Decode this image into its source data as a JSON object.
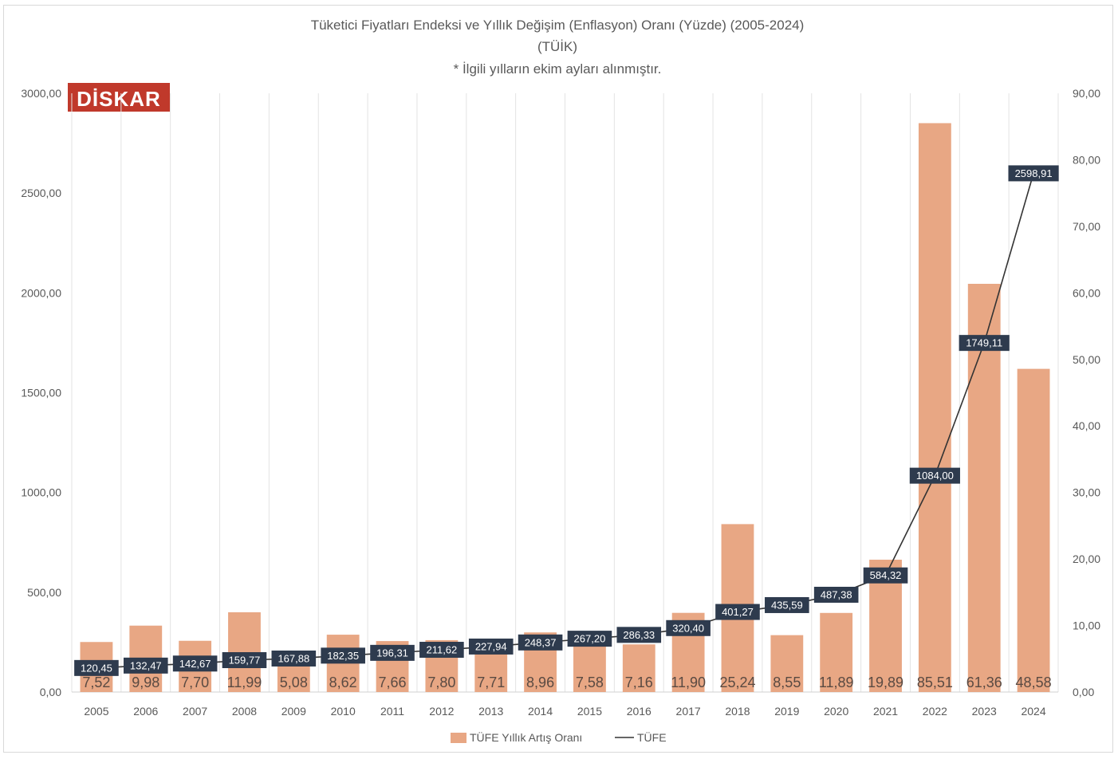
{
  "chart_data": {
    "type": "bar",
    "title": "Tüketici Fiyatları Endeksi ve Yıllık Değişim (Enflasyon) Oranı (Yüzde) (2005-2024)",
    "subtitle": "(TÜİK)",
    "note": "* İlgili yılların ekim ayları alınmıştır.",
    "categories": [
      "2005",
      "2006",
      "2007",
      "2008",
      "2009",
      "2010",
      "2011",
      "2012",
      "2013",
      "2014",
      "2015",
      "2016",
      "2017",
      "2018",
      "2019",
      "2020",
      "2021",
      "2022",
      "2023",
      "2024"
    ],
    "series": [
      {
        "name": "TÜFE Yıllık Artış Oranı",
        "type": "bar",
        "axis": "right",
        "color": "#e8a784",
        "values": [
          7.52,
          9.98,
          7.7,
          11.99,
          5.08,
          8.62,
          7.66,
          7.8,
          7.71,
          8.96,
          7.58,
          7.16,
          11.9,
          25.24,
          8.55,
          11.89,
          19.89,
          85.51,
          61.36,
          48.58
        ],
        "labels": [
          "7,52",
          "9,98",
          "7,70",
          "11,99",
          "5,08",
          "8,62",
          "7,66",
          "7,80",
          "7,71",
          "8,96",
          "7,58",
          "7,16",
          "11,90",
          "25,24",
          "8,55",
          "11,89",
          "19,89",
          "85,51",
          "61,36",
          "48,58"
        ]
      },
      {
        "name": "TÜFE",
        "type": "line",
        "axis": "left",
        "color": "#333333",
        "values": [
          120.45,
          132.47,
          142.67,
          159.77,
          167.88,
          182.35,
          196.31,
          211.62,
          227.94,
          248.37,
          267.2,
          286.33,
          320.4,
          401.27,
          435.59,
          487.38,
          584.32,
          1084.0,
          1749.11,
          2598.91
        ],
        "labels": [
          "120,45",
          "132,47",
          "142,67",
          "159,77",
          "167,88",
          "182,35",
          "196,31",
          "211,62",
          "227,94",
          "248,37",
          "267,20",
          "286,33",
          "320,40",
          "401,27",
          "435,59",
          "487,38",
          "584,32",
          "1084,00",
          "1749,11",
          "2598,91"
        ]
      }
    ],
    "y_left": {
      "ylim": [
        0,
        3000
      ],
      "ticks": [
        0,
        500,
        1000,
        1500,
        2000,
        2500,
        3000
      ],
      "tick_labels": [
        "0,00",
        "500,00",
        "1000,00",
        "1500,00",
        "2000,00",
        "2500,00",
        "3000,00"
      ]
    },
    "y_right": {
      "ylim": [
        0,
        90
      ],
      "ticks": [
        0,
        10,
        20,
        30,
        40,
        50,
        60,
        70,
        80,
        90
      ],
      "tick_labels": [
        "0,00",
        "10,00",
        "20,00",
        "30,00",
        "40,00",
        "50,00",
        "60,00",
        "70,00",
        "80,00",
        "90,00"
      ]
    },
    "grid": "vertical",
    "legend": "bottom",
    "label_box_color": "#2e3b4e"
  },
  "logo": {
    "text": "DİSKAR",
    "color": "#c0392b"
  }
}
